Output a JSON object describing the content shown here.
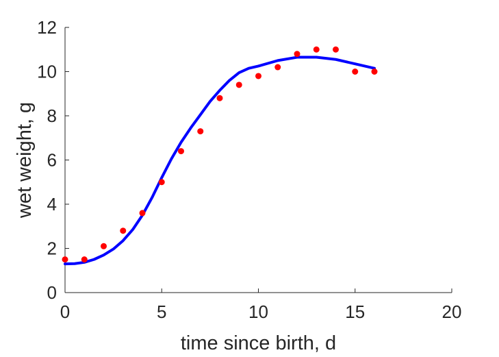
{
  "chart_data": {
    "type": "scatter",
    "title": "",
    "xlabel": "time since birth, d",
    "ylabel": "wet weight, g",
    "xlim": [
      0,
      20
    ],
    "ylim": [
      0,
      12
    ],
    "xticks": [
      0,
      5,
      10,
      15,
      20
    ],
    "yticks": [
      0,
      2,
      4,
      6,
      8,
      10,
      12
    ],
    "grid": false,
    "series": [
      {
        "kind": "scatter",
        "color": "#ff0000",
        "x": [
          0,
          1,
          2,
          3,
          4,
          5,
          6,
          7,
          8,
          9,
          10,
          11,
          12,
          13,
          14,
          15,
          16
        ],
        "y": [
          1.5,
          1.5,
          2.1,
          2.8,
          3.6,
          5.0,
          6.4,
          7.3,
          8.8,
          9.4,
          9.8,
          10.2,
          10.8,
          11.0,
          11.0,
          10.0,
          10.0
        ]
      },
      {
        "kind": "line",
        "color": "#0000ff",
        "x": [
          0,
          0.5,
          1,
          1.5,
          2,
          2.5,
          3,
          3.5,
          4,
          4.5,
          5,
          5.5,
          6,
          6.5,
          7,
          7.5,
          8,
          8.5,
          9,
          9.5,
          10,
          11,
          12,
          13,
          14,
          15,
          16
        ],
        "y": [
          1.3,
          1.31,
          1.37,
          1.5,
          1.7,
          1.97,
          2.35,
          2.85,
          3.5,
          4.3,
          5.2,
          6.05,
          6.8,
          7.45,
          8.05,
          8.65,
          9.15,
          9.6,
          9.95,
          10.15,
          10.25,
          10.5,
          10.65,
          10.65,
          10.55,
          10.35,
          10.15
        ]
      }
    ]
  }
}
